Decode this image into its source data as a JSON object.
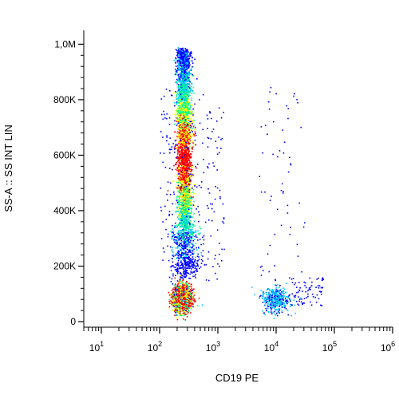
{
  "chart_data": {
    "type": "scatter",
    "subtype": "flow-cytometry-density-dot-plot",
    "xlabel": "CD19 PE",
    "ylabel": "SS-A :: SS INT LIN",
    "x_scale": "log",
    "xlim": [
      5,
      1000000
    ],
    "y_scale": "linear",
    "ylim": [
      -20000,
      1050000
    ],
    "x_ticks": [
      {
        "base": "10",
        "exp": "1",
        "value": 10
      },
      {
        "base": "10",
        "exp": "2",
        "value": 100
      },
      {
        "base": "10",
        "exp": "3",
        "value": 1000
      },
      {
        "base": "10",
        "exp": "4",
        "value": 10000
      },
      {
        "base": "10",
        "exp": "5",
        "value": 100000
      },
      {
        "base": "10",
        "exp": "6",
        "value": 1000000
      }
    ],
    "y_ticks": [
      {
        "label": "0",
        "value": 0
      },
      {
        "label": "200K",
        "value": 200000
      },
      {
        "label": "400K",
        "value": 400000
      },
      {
        "label": "600K",
        "value": 600000
      },
      {
        "label": "800K",
        "value": 800000
      },
      {
        "label": "1,0M",
        "value": 1000000
      }
    ],
    "grid": false,
    "legend": "none",
    "color_scale": [
      "#0000ff",
      "#00c8ff",
      "#00ff80",
      "#ffff00",
      "#ff0000"
    ],
    "populations": [
      {
        "description_key": "cd19-negative cells",
        "x_center": 270,
        "y_from": 150000,
        "y_to": 980000,
        "density": "high"
      },
      {
        "description_key": "cd19-negative low side scatter cluster",
        "x_center": 240,
        "y_center": 85000,
        "density": "very high"
      },
      {
        "description_key": "cd19-positive cluster",
        "x_center": 10000,
        "y_center": 85000,
        "density": "medium"
      }
    ]
  }
}
